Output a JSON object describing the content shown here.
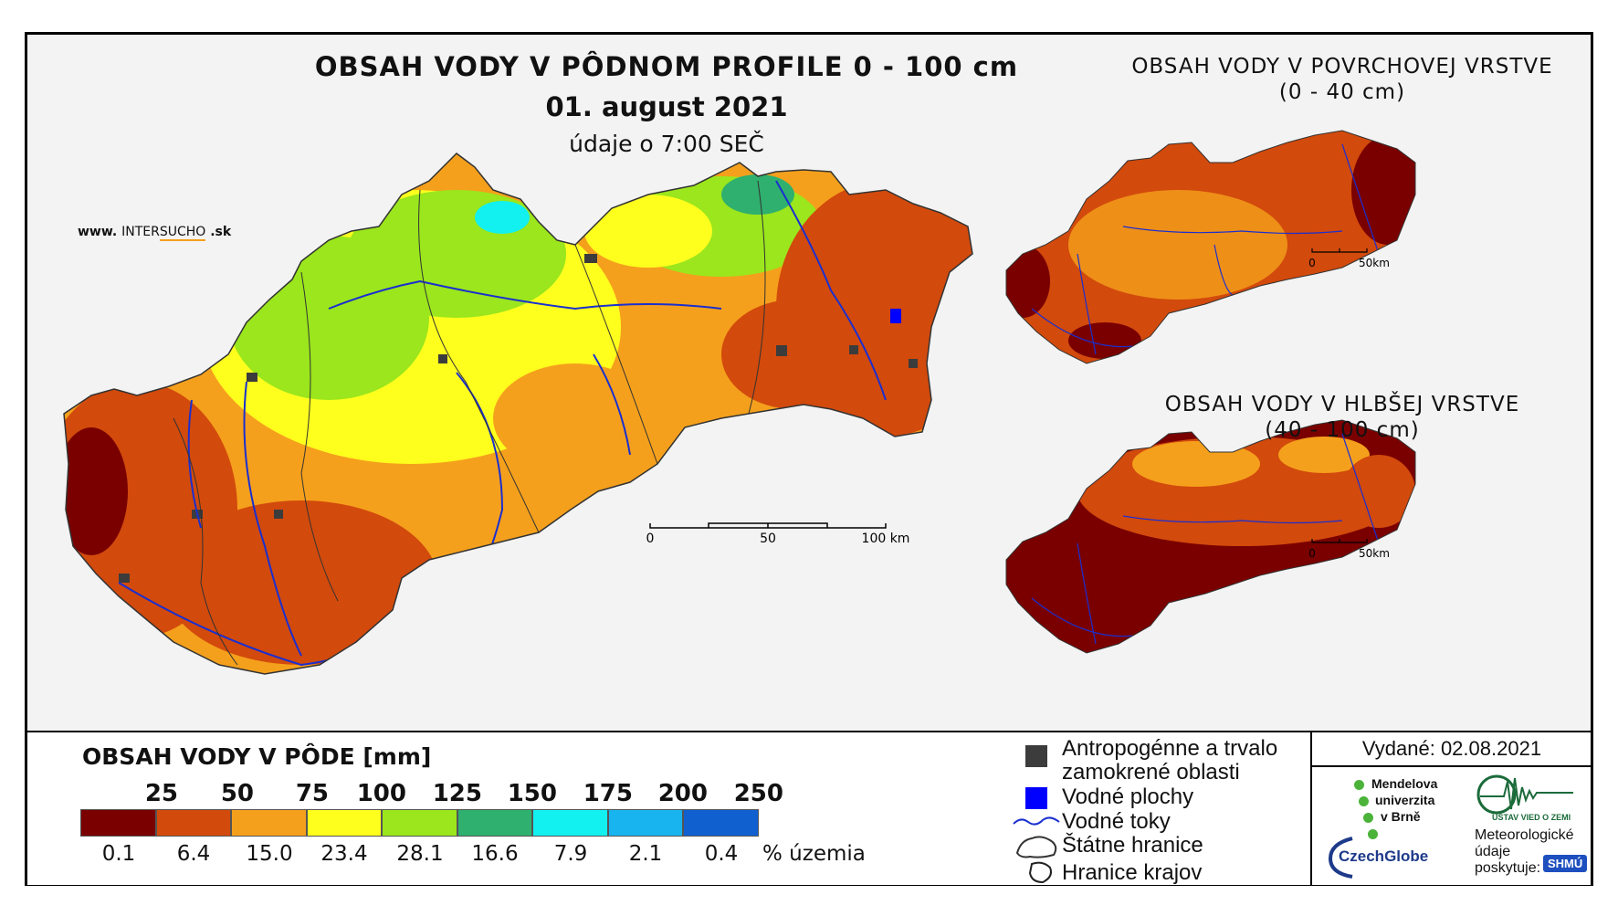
{
  "main_map": {
    "title": "OBSAH VODY V PÔDNOM PROFILE 0 - 100 cm",
    "date": "01. august 2021",
    "time_note": "údaje o 7:00 SEČ",
    "scale_labels": [
      "0",
      "50",
      "100 km"
    ]
  },
  "brand": {
    "prefix": "www.",
    "name_a": "INTER",
    "name_b": "SUCHO",
    "suffix": ".sk"
  },
  "inset_top": {
    "title": "OBSAH VODY V POVRCHOVEJ VRSTVE",
    "depth": "(0 - 40 cm)",
    "scale_labels": [
      "0",
      "50km"
    ]
  },
  "inset_bottom": {
    "title": "OBSAH VODY V HLBŠEJ VRSTVE",
    "depth": "(40 - 100 cm)",
    "scale_labels": [
      "0",
      "50km"
    ]
  },
  "legend": {
    "title": "OBSAH VODY V PÔDE [mm]",
    "thresholds": [
      "25",
      "50",
      "75",
      "100",
      "125",
      "150",
      "175",
      "200",
      "250"
    ],
    "classes": [
      {
        "color": "#7a0000",
        "percent": "0.1"
      },
      {
        "color": "#d24a0c",
        "percent": "6.4"
      },
      {
        "color": "#f5a01c",
        "percent": "15.0"
      },
      {
        "color": "#ffff1e",
        "percent": "23.4"
      },
      {
        "color": "#9be61c",
        "percent": "28.1"
      },
      {
        "color": "#2fb06e",
        "percent": "16.6"
      },
      {
        "color": "#12f0f0",
        "percent": "7.9"
      },
      {
        "color": "#18b4f0",
        "percent": "2.1"
      },
      {
        "color": "#1060d0",
        "percent": "0.4"
      }
    ],
    "percent_unit": "% územia"
  },
  "key": {
    "anthropogenic_line1": "Antropogénne a trvalo",
    "anthropogenic_line2": "zamokrené oblasti",
    "water_bodies": "Vodné plochy",
    "rivers": "Vodné toky",
    "state_border": "Štátne hranice",
    "region_border": "Hranice krajov"
  },
  "issued": "Vydané: 02.08.2021",
  "institutions": {
    "mendel_line1": "Mendelova",
    "mendel_line2": "univerzita",
    "mendel_line3": "v Brně",
    "ustav": "ÚSTAV VIED O ZEMI",
    "czechglobe": "CzechGlobe",
    "meteo_line1": "Meteorologické",
    "meteo_line2": "údaje",
    "meteo_line3": "poskytuje:",
    "shmu": "SHMÚ"
  },
  "colors": {
    "dark_red": "#7a0000",
    "red_orange": "#d24a0c",
    "orange": "#f5a01c",
    "yellow": "#ffff1e",
    "green": "#9be61c",
    "river": "#1a2fd0",
    "anthropogenic": "#3c3c3c"
  }
}
